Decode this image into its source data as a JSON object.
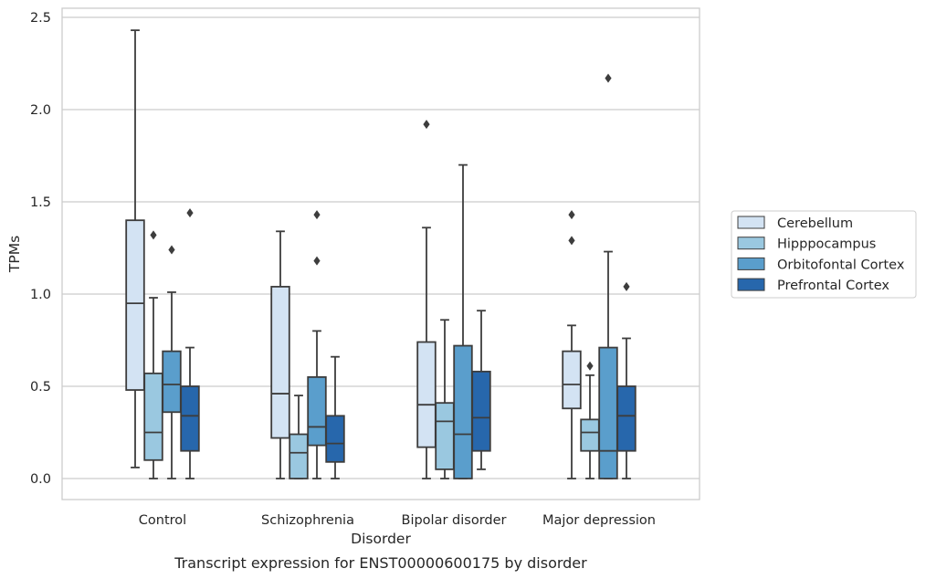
{
  "chart_data": {
    "type": "box",
    "caption": "Transcript expression for ENST00000600175 by disorder",
    "xlabel": "Disorder",
    "ylabel": "TPMs",
    "ylim": [
      -0.12,
      2.56
    ],
    "yticks": [
      0.0,
      0.5,
      1.0,
      1.5,
      2.0,
      2.5
    ],
    "ytick_labels": [
      "0.0",
      "0.5",
      "1.0",
      "1.5",
      "2.0",
      "2.5"
    ],
    "grid": "horizontal",
    "legend_position": "right",
    "categories": [
      "Control",
      "Schizophrenia",
      "Bipolar disorder",
      "Major depression"
    ],
    "series": [
      {
        "name": "Cerebellum",
        "color": "#d3e3f3",
        "boxes": [
          {
            "whislo": 0.06,
            "q1": 0.48,
            "med": 0.95,
            "q3": 1.4,
            "whishi": 2.43,
            "fliers": []
          },
          {
            "whislo": 0.0,
            "q1": 0.22,
            "med": 0.46,
            "q3": 1.04,
            "whishi": 1.34,
            "fliers": []
          },
          {
            "whislo": 0.0,
            "q1": 0.17,
            "med": 0.4,
            "q3": 0.74,
            "whishi": 1.36,
            "fliers": [
              1.92
            ]
          },
          {
            "whislo": 0.0,
            "q1": 0.38,
            "med": 0.51,
            "q3": 0.69,
            "whishi": 0.83,
            "fliers": [
              1.29,
              1.43
            ]
          }
        ]
      },
      {
        "name": "Hipppocampus",
        "color": "#9ac8e0",
        "boxes": [
          {
            "whislo": 0.0,
            "q1": 0.1,
            "med": 0.25,
            "q3": 0.57,
            "whishi": 0.98,
            "fliers": [
              1.32
            ]
          },
          {
            "whislo": 0.0,
            "q1": 0.0,
            "med": 0.14,
            "q3": 0.24,
            "whishi": 0.45,
            "fliers": []
          },
          {
            "whislo": 0.0,
            "q1": 0.05,
            "med": 0.31,
            "q3": 0.41,
            "whishi": 0.86,
            "fliers": []
          },
          {
            "whislo": 0.0,
            "q1": 0.15,
            "med": 0.25,
            "q3": 0.32,
            "whishi": 0.56,
            "fliers": [
              0.61
            ]
          }
        ]
      },
      {
        "name": "Orbitofontal Cortex",
        "color": "#5a9ecc",
        "boxes": [
          {
            "whislo": 0.0,
            "q1": 0.36,
            "med": 0.51,
            "q3": 0.69,
            "whishi": 1.01,
            "fliers": [
              1.24
            ]
          },
          {
            "whislo": 0.0,
            "q1": 0.18,
            "med": 0.28,
            "q3": 0.55,
            "whishi": 0.8,
            "fliers": [
              1.18,
              1.43
            ]
          },
          {
            "whislo": 0.0,
            "q1": 0.0,
            "med": 0.24,
            "q3": 0.72,
            "whishi": 1.7,
            "fliers": []
          },
          {
            "whislo": 0.0,
            "q1": 0.0,
            "med": 0.15,
            "q3": 0.71,
            "whishi": 1.23,
            "fliers": [
              2.17
            ]
          }
        ]
      },
      {
        "name": "Prefrontal Cortex",
        "color": "#2767ac",
        "boxes": [
          {
            "whislo": 0.0,
            "q1": 0.15,
            "med": 0.34,
            "q3": 0.5,
            "whishi": 0.71,
            "fliers": [
              1.44
            ]
          },
          {
            "whislo": 0.0,
            "q1": 0.09,
            "med": 0.19,
            "q3": 0.34,
            "whishi": 0.66,
            "fliers": []
          },
          {
            "whislo": 0.05,
            "q1": 0.15,
            "med": 0.33,
            "q3": 0.58,
            "whishi": 0.91,
            "fliers": []
          },
          {
            "whislo": 0.0,
            "q1": 0.15,
            "med": 0.34,
            "q3": 0.5,
            "whishi": 0.76,
            "fliers": [
              1.04
            ]
          }
        ]
      }
    ]
  }
}
